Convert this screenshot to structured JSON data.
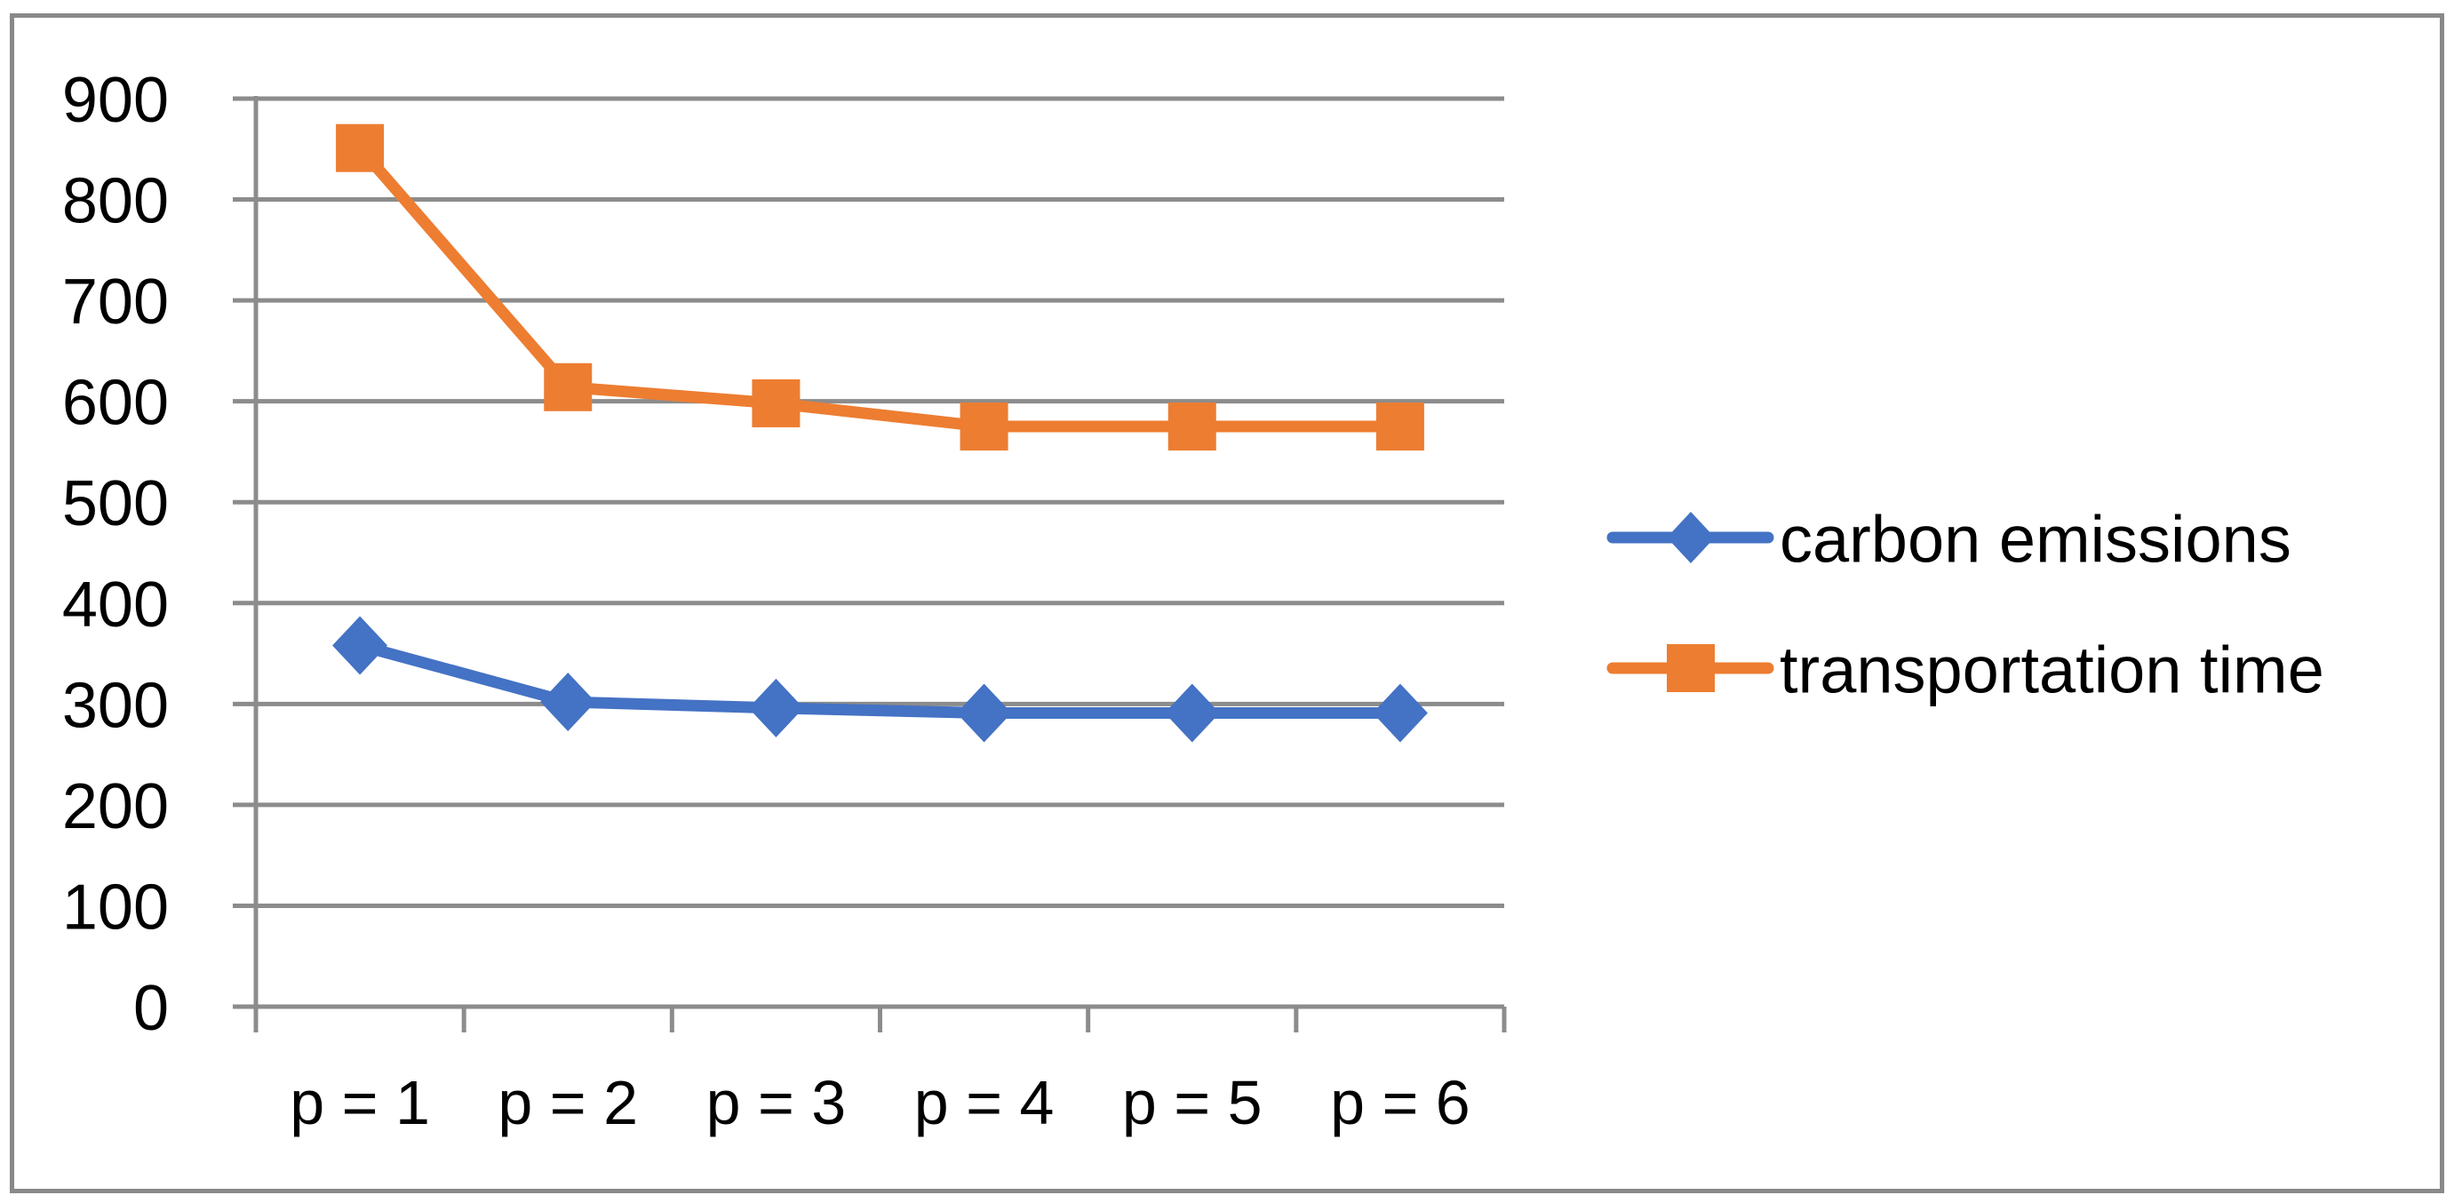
{
  "chart_data": {
    "type": "line",
    "title": "",
    "categories": [
      "p = 1",
      "p = 2",
      "p = 3",
      "p = 4",
      "p = 5",
      "p = 6"
    ],
    "series": [
      {
        "name": "carbon emissions",
        "color": "#4472C4",
        "marker": "diamond",
        "values": [
          358,
          302,
          296,
          291,
          291,
          291
        ]
      },
      {
        "name": "transportation time",
        "color": "#ED7D31",
        "marker": "square",
        "values": [
          851,
          614,
          598,
          575,
          575,
          575
        ]
      }
    ],
    "xlabel": "",
    "ylabel": "",
    "y_axis": {
      "min": 0,
      "max": 900,
      "step": 100,
      "tick_labels": [
        "0",
        "100",
        "200",
        "300",
        "400",
        "500",
        "600",
        "700",
        "800",
        "900"
      ]
    },
    "x_tick_labels": [
      "p = 1",
      "p = 2",
      "p = 3",
      "p = 4",
      "p = 5",
      "p = 6"
    ],
    "grid": "horizontal",
    "legend_position": "right-middle",
    "legend": [
      {
        "label": "carbon emissions",
        "marker": "diamond-on-line",
        "color": "#4472C4"
      },
      {
        "label": "transportation time",
        "marker": "square-on-line",
        "color": "#ED7D31"
      }
    ],
    "colors": {
      "background": "#FFFFFF",
      "gridline": "#8C8C8C",
      "axis": "#8C8C8C",
      "frame_border": "#898989",
      "text": "#000000"
    }
  }
}
